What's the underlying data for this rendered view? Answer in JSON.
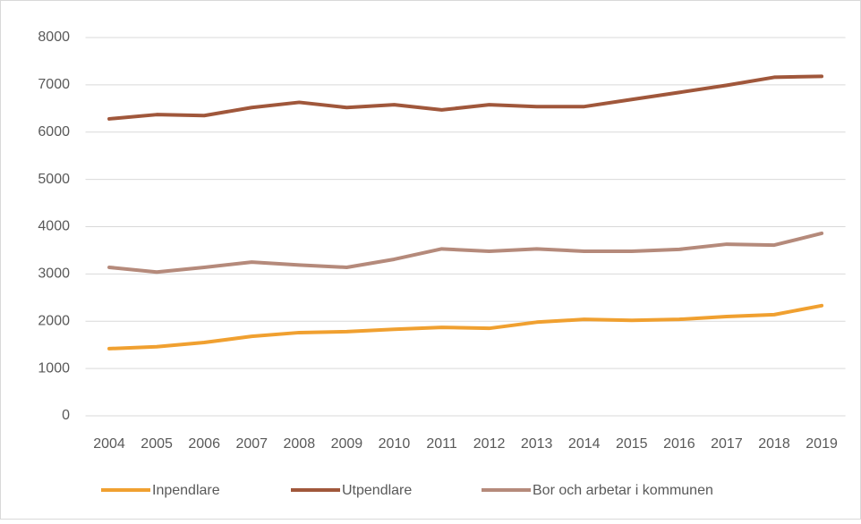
{
  "chart_data": {
    "type": "line",
    "categories": [
      "2004",
      "2005",
      "2006",
      "2007",
      "2008",
      "2009",
      "2010",
      "2011",
      "2012",
      "2013",
      "2014",
      "2015",
      "2016",
      "2017",
      "2018",
      "2019"
    ],
    "series": [
      {
        "name": "Inpendlare",
        "color": "#f0a030",
        "values": [
          1420,
          1460,
          1550,
          1680,
          1760,
          1780,
          1830,
          1870,
          1850,
          1980,
          2040,
          2020,
          2040,
          2100,
          2140,
          2330
        ]
      },
      {
        "name": "Utpendlare",
        "color": "#a0573b",
        "values": [
          6280,
          6370,
          6350,
          6520,
          6630,
          6520,
          6580,
          6470,
          6580,
          6540,
          6540,
          6690,
          6840,
          6990,
          7160,
          7180
        ]
      },
      {
        "name": "Bor och arbetar i kommunen",
        "color": "#b58a7b",
        "values": [
          3140,
          3040,
          3140,
          3250,
          3190,
          3140,
          3310,
          3530,
          3480,
          3530,
          3480,
          3480,
          3520,
          3630,
          3610,
          3860
        ]
      }
    ],
    "ylim": [
      0,
      8000
    ],
    "yticks": [
      0,
      1000,
      2000,
      3000,
      4000,
      5000,
      6000,
      7000,
      8000
    ],
    "grid": true,
    "legend": "bottom"
  }
}
